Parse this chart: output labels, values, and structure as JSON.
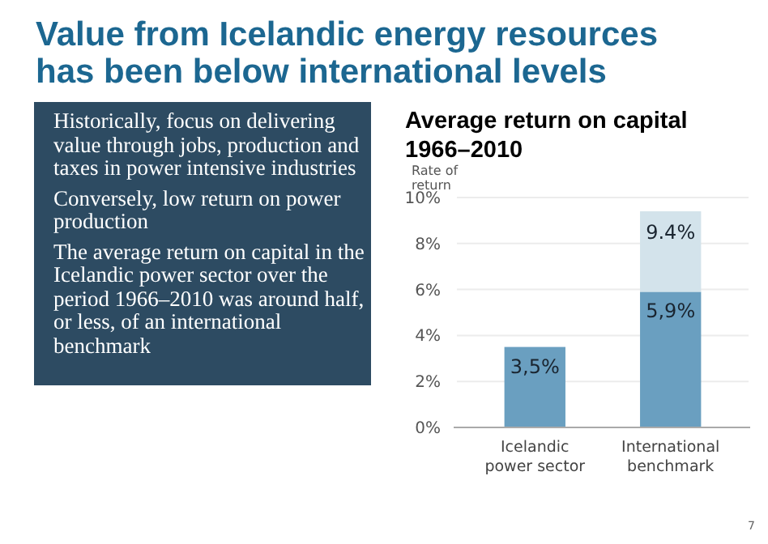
{
  "chart_data": {
    "type": "bar",
    "title": "Value from Icelandic energy resources has been below international levels",
    "subtitle": "Average return on capital 1966–2010",
    "ylabel": "Rate of return",
    "categories": [
      "Icelandic power sector",
      "International benchmark"
    ],
    "stacked": true,
    "series": [
      {
        "color": "#6a9fc0",
        "values": [
          3.5,
          5.9
        ],
        "value_labels": [
          "3,5%",
          "5,9%"
        ]
      },
      {
        "color": "#d3e3eb",
        "values": [
          0,
          3.5
        ]
      }
    ],
    "totals": [
      null,
      "9.4%"
    ],
    "ylim": [
      0,
      10
    ],
    "yticks": [
      {
        "value": 0,
        "label": "0%"
      },
      {
        "value": 2,
        "label": "2%"
      },
      {
        "value": 4,
        "label": "4%"
      },
      {
        "value": 6,
        "label": "6%"
      },
      {
        "value": 8,
        "label": "8%"
      },
      {
        "value": 10,
        "label": "10%"
      }
    ],
    "grid": "y",
    "annotations": [
      "Historically, focus on delivering value through jobs, production and taxes in power intensive industries",
      "Conversely, low return on power production",
      "The average return on capital in the Icelandic power sector over the period 1966–2010 was around half, or less, of an international benchmark",
      "7"
    ]
  }
}
